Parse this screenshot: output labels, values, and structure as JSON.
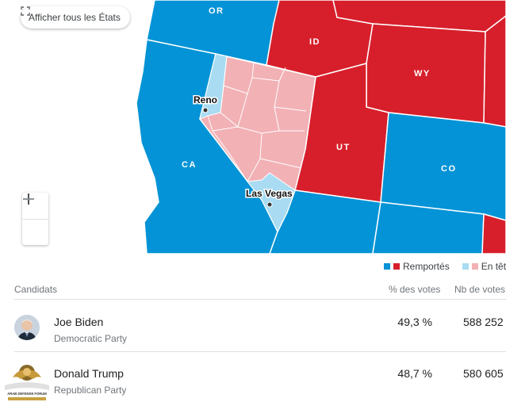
{
  "colors": {
    "dem_won": "#0493d6",
    "rep_won": "#d71f2b",
    "dem_leading": "#a9dcf2",
    "rep_leading": "#f2b1b5",
    "background": "#ffffff"
  },
  "map": {
    "state_labels": [
      "OR",
      "ID",
      "WY",
      "CA",
      "UT",
      "CO"
    ],
    "cities": [
      "Reno",
      "Las Vegas"
    ],
    "show_all_label": "Afficher tous les États",
    "show_all_icon": "expand-icon",
    "zoom_in_label": "+",
    "zoom_out_label": "−"
  },
  "legend": {
    "won_label": "Remportés",
    "leading_label": "En tête"
  },
  "table": {
    "headers": {
      "candidates": "Candidats",
      "pct": "% des votes",
      "votes": "Nb de votes"
    },
    "rows": [
      {
        "name": "Joe Biden",
        "party": "Democratic Party",
        "pct": "49,3 %",
        "votes": "588 252"
      },
      {
        "name": "Donald Trump",
        "party": "Republican Party",
        "pct": "48,7 %",
        "votes": "580 605"
      }
    ]
  },
  "watermark_text": "ARAB DEFENSE FORUM"
}
